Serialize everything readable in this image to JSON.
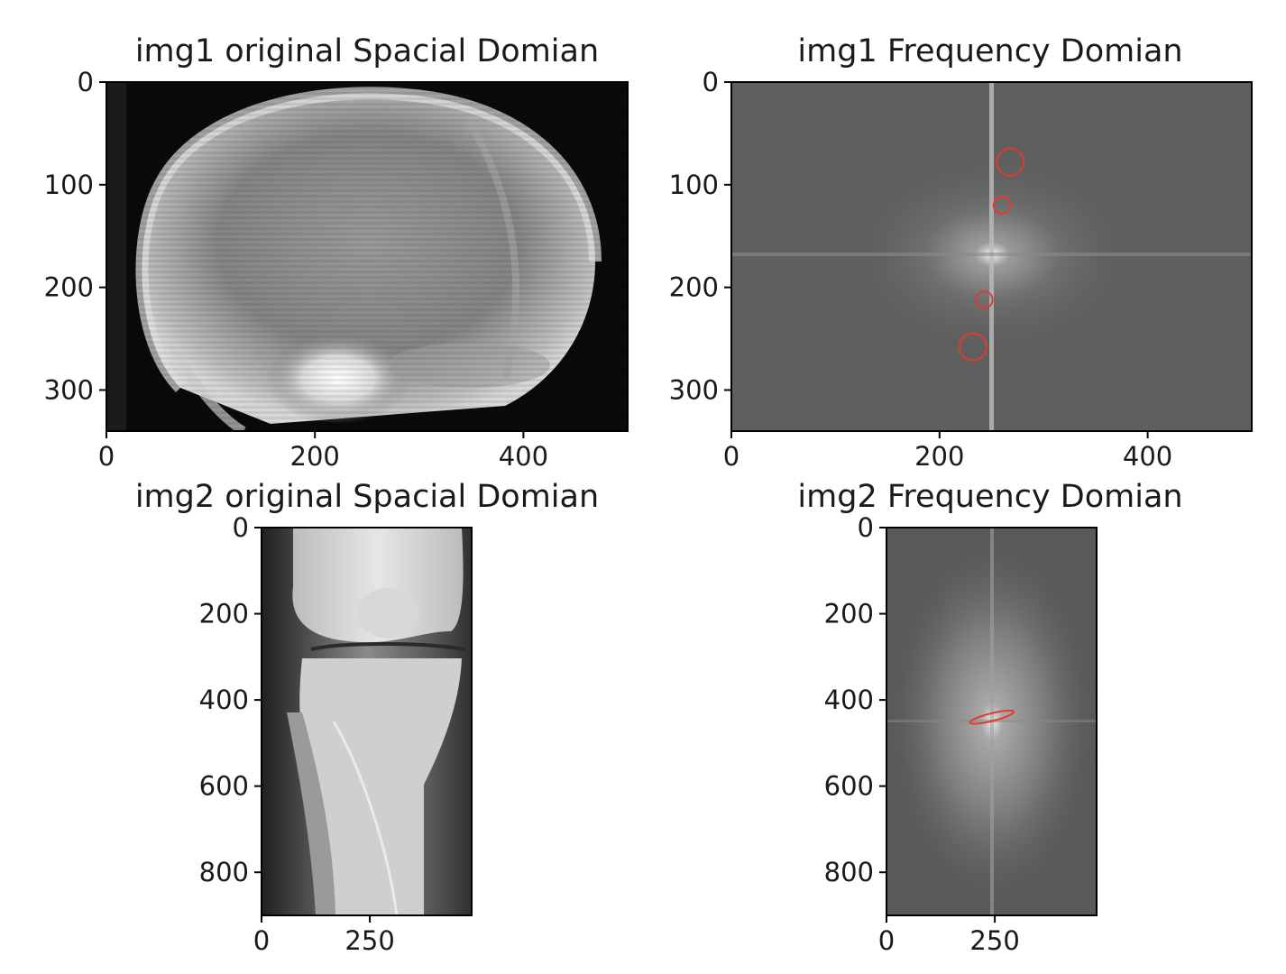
{
  "chart_data": [
    {
      "type": "image",
      "title": "img1 original Spacial Domian",
      "content": "skull x-ray",
      "xlim": [
        0,
        500
      ],
      "ylim": [
        340,
        0
      ],
      "xticks": [
        0,
        200,
        400
      ],
      "yticks": [
        0,
        100,
        200,
        300
      ]
    },
    {
      "type": "image",
      "title": "img1 Frequency Domian",
      "content": "fft magnitude spectrum",
      "xlim": [
        0,
        500
      ],
      "ylim": [
        340,
        0
      ],
      "xticks": [
        0,
        200,
        400
      ],
      "yticks": [
        0,
        100,
        200,
        300
      ],
      "annotations": [
        {
          "shape": "circle",
          "x": 268,
          "y": 78,
          "r": 13,
          "color": "#e23a2c"
        },
        {
          "shape": "circle",
          "x": 260,
          "y": 120,
          "r": 8,
          "color": "#e23a2c"
        },
        {
          "shape": "circle",
          "x": 243,
          "y": 212,
          "r": 8,
          "color": "#e23a2c"
        },
        {
          "shape": "circle",
          "x": 232,
          "y": 258,
          "r": 13,
          "color": "#e23a2c"
        }
      ]
    },
    {
      "type": "image",
      "title": "img2 original Spacial Domian",
      "content": "knee x-ray",
      "xlim": [
        0,
        485
      ],
      "ylim": [
        900,
        0
      ],
      "xticks": [
        0,
        250
      ],
      "yticks": [
        0,
        200,
        400,
        600,
        800
      ]
    },
    {
      "type": "image",
      "title": "img2 Frequency Domian",
      "content": "fft magnitude spectrum",
      "xlim": [
        0,
        485
      ],
      "ylim": [
        900,
        0
      ],
      "xticks": [
        0,
        250
      ],
      "yticks": [
        0,
        200,
        400,
        600,
        800
      ],
      "annotations": [
        {
          "shape": "ellipse",
          "x": 243,
          "y": 440,
          "rx": 52,
          "ry": 9,
          "angle": -14,
          "color": "#e23a2c"
        }
      ]
    }
  ]
}
